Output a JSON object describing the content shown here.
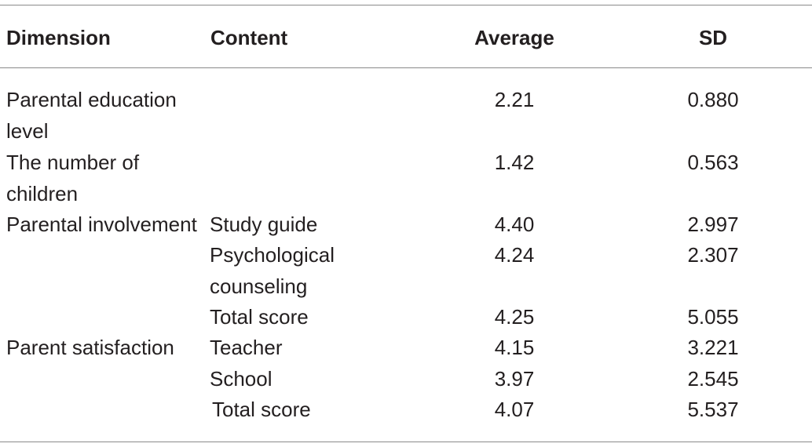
{
  "table": {
    "headers": {
      "dimension": "Dimension",
      "content": "Content",
      "average": "Average",
      "sd": "SD"
    },
    "rows": [
      {
        "dimension": "Parental education level",
        "content": "",
        "average": "2.21",
        "sd": "0.880"
      },
      {
        "dimension": "The number of children",
        "content": "",
        "average": "1.42",
        "sd": "0.563"
      },
      {
        "dimension": "Parental involvement",
        "content": "Study guide",
        "average": "4.40",
        "sd": "2.997"
      },
      {
        "dimension": "",
        "content": "Psychological counseling",
        "average": "4.24",
        "sd": "2.307"
      },
      {
        "dimension": "",
        "content": "Total score",
        "average": "4.25",
        "sd": "5.055"
      },
      {
        "dimension": "Parent satisfaction",
        "content": "Teacher",
        "average": "4.15",
        "sd": "3.221"
      },
      {
        "dimension": "",
        "content": "School",
        "average": "3.97",
        "sd": "2.545"
      },
      {
        "dimension": "",
        "content": "Total score",
        "average": "4.07",
        "sd": "5.537"
      }
    ]
  }
}
